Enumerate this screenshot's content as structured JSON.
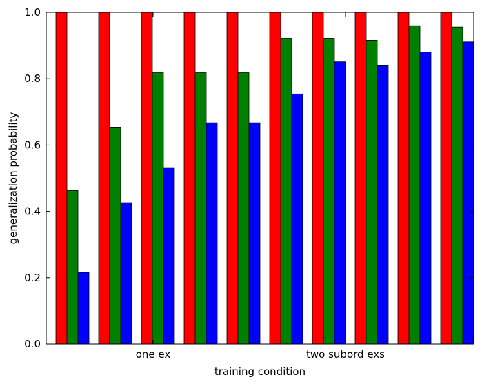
{
  "chart_data": {
    "type": "bar",
    "title": "",
    "xlabel": "training condition",
    "ylabel": "generalization probability",
    "ylim": [
      0,
      1.0
    ],
    "yticks": [
      "0.0",
      "0.2",
      "0.4",
      "0.6",
      "0.8",
      "1.0"
    ],
    "x_tick_labels": [
      {
        "label": "one ex",
        "group_index": 2.5
      },
      {
        "label": "two subord exs",
        "group_index": 7
      }
    ],
    "num_groups": 10,
    "series_colors": [
      "#ff0000",
      "#008000",
      "#0000ff"
    ],
    "series": [
      {
        "name": "",
        "color": "#ff0000",
        "values": [
          1.0,
          1.0,
          1.0,
          1.0,
          1.0,
          1.0,
          1.0,
          1.0,
          1.0,
          1.0
        ]
      },
      {
        "name": "",
        "color": "#008000",
        "values": [
          0.463,
          0.654,
          0.818,
          0.818,
          0.818,
          0.922,
          0.922,
          0.916,
          0.96,
          0.956
        ]
      },
      {
        "name": "",
        "color": "#0000ff",
        "values": [
          0.216,
          0.426,
          0.532,
          0.667,
          0.667,
          0.754,
          0.851,
          0.839,
          0.88,
          0.911
        ]
      }
    ],
    "grid": false,
    "legend": "none"
  }
}
